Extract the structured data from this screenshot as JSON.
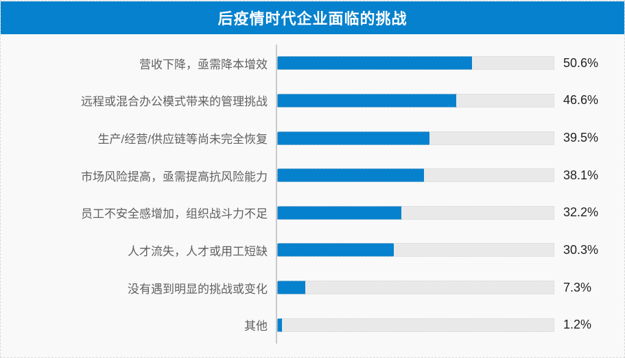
{
  "colors": {
    "accent": "#0681cd",
    "track": "#e9e9e9",
    "title_text": "#ffffff",
    "label_text": "#606060",
    "value_text": "#1f1f1f",
    "page_background": "#f9f9f9"
  },
  "chart_data": {
    "type": "bar",
    "orientation": "horizontal",
    "title": "后疫情时代企业面临的挑战",
    "categories": [
      "营收下降，亟需降本增效",
      "远程或混合办公模式带来的管理挑战",
      "生产/经营/供应链等尚未完全恢复",
      "市场风险提高，亟需提高抗风险能力",
      "员工不安全感增加，组织战斗力不足",
      "人才流失，人才或用工短缺",
      "没有遇到明显的挑战或变化",
      "其他"
    ],
    "values": [
      50.6,
      46.6,
      39.5,
      38.1,
      32.2,
      30.3,
      7.3,
      1.2
    ],
    "value_labels": [
      "50.6%",
      "46.6%",
      "39.5%",
      "38.1%",
      "32.2%",
      "30.3%",
      "7.3%",
      "1.2%"
    ],
    "xlabel": "",
    "ylabel": "",
    "xlim": [
      0,
      72
    ],
    "grid": false,
    "legend": false,
    "value_labels_position": "right-of-track",
    "track_full_scale_percent": 72
  }
}
